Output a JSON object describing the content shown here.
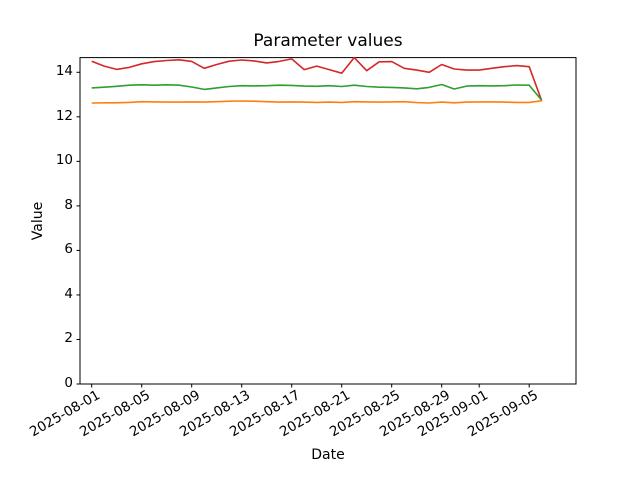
{
  "chart_data": {
    "type": "line",
    "title": "Parameter values",
    "xlabel": "Date",
    "ylabel": "Value",
    "grid": false,
    "legend": "none",
    "ylim": [
      0,
      14.66
    ],
    "y_ticks": [
      0,
      2,
      4,
      6,
      8,
      10,
      12,
      14
    ],
    "x_tick_labels": [
      "2025-08-01",
      "2025-08-05",
      "2025-08-09",
      "2025-08-13",
      "2025-08-17",
      "2025-08-21",
      "2025-08-25",
      "2025-08-29",
      "2025-09-01",
      "2025-09-05"
    ],
    "x": [
      "2025-08-01",
      "2025-08-02",
      "2025-08-03",
      "2025-08-04",
      "2025-08-05",
      "2025-08-06",
      "2025-08-07",
      "2025-08-08",
      "2025-08-09",
      "2025-08-10",
      "2025-08-11",
      "2025-08-12",
      "2025-08-13",
      "2025-08-14",
      "2025-08-15",
      "2025-08-16",
      "2025-08-17",
      "2025-08-18",
      "2025-08-19",
      "2025-08-20",
      "2025-08-21",
      "2025-08-22",
      "2025-08-23",
      "2025-08-24",
      "2025-08-25",
      "2025-08-26",
      "2025-08-27",
      "2025-08-28",
      "2025-08-29",
      "2025-08-30",
      "2025-08-31",
      "2025-09-01",
      "2025-09-02",
      "2025-09-03",
      "2025-09-04",
      "2025-09-05",
      "2025-09-06"
    ],
    "series": [
      {
        "name": "red-series",
        "color": "#d62728",
        "values": [
          14.5,
          14.28,
          14.13,
          14.22,
          14.38,
          14.48,
          14.53,
          14.56,
          14.49,
          14.18,
          14.35,
          14.5,
          14.55,
          14.51,
          14.42,
          14.49,
          14.6,
          14.12,
          14.28,
          14.12,
          13.96,
          14.66,
          14.07,
          14.47,
          14.48,
          14.18,
          14.1,
          14.0,
          14.35,
          14.15,
          14.1,
          14.1,
          14.18,
          14.25,
          14.3,
          14.25,
          12.72
        ]
      },
      {
        "name": "green-series",
        "color": "#2ca02c",
        "values": [
          13.3,
          13.33,
          13.37,
          13.42,
          13.44,
          13.42,
          13.44,
          13.42,
          13.34,
          13.23,
          13.3,
          13.36,
          13.4,
          13.39,
          13.4,
          13.42,
          13.41,
          13.38,
          13.37,
          13.4,
          13.36,
          13.42,
          13.36,
          13.33,
          13.32,
          13.3,
          13.26,
          13.32,
          13.45,
          13.25,
          13.38,
          13.4,
          13.39,
          13.4,
          13.43,
          13.42,
          12.74
        ]
      },
      {
        "name": "orange-series",
        "color": "#ff7f0e",
        "values": [
          12.62,
          12.63,
          12.63,
          12.65,
          12.68,
          12.67,
          12.66,
          12.66,
          12.67,
          12.66,
          12.68,
          12.7,
          12.71,
          12.7,
          12.68,
          12.66,
          12.67,
          12.66,
          12.65,
          12.66,
          12.65,
          12.68,
          12.67,
          12.66,
          12.67,
          12.68,
          12.64,
          12.62,
          12.66,
          12.63,
          12.66,
          12.67,
          12.67,
          12.66,
          12.65,
          12.65,
          12.72
        ]
      }
    ]
  }
}
